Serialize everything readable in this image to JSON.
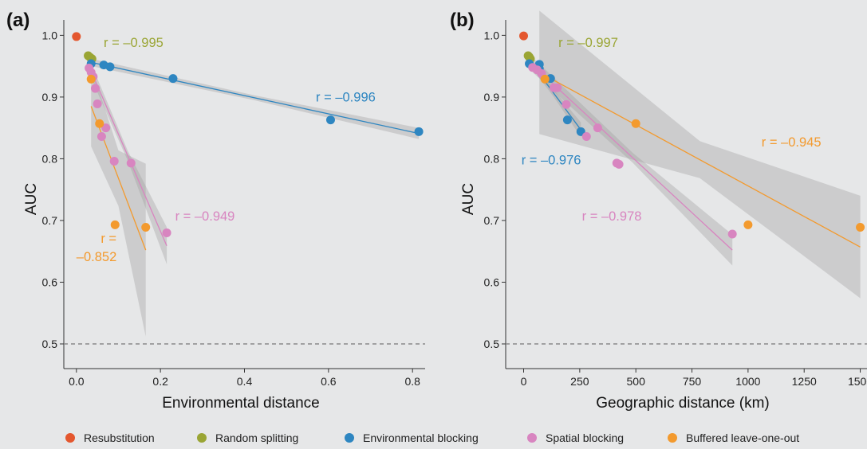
{
  "chart_data": [
    {
      "panel": "(a)",
      "type": "scatter",
      "xlabel": "Environmental distance",
      "ylabel": "AUC",
      "xlim": [
        -0.03,
        0.83
      ],
      "ylim": [
        0.46,
        1.025
      ],
      "xticks": [
        0.0,
        0.2,
        0.4,
        0.6,
        0.8
      ],
      "xtick_labels": [
        "0.0",
        "0.2",
        "0.4",
        "0.6",
        "0.8"
      ],
      "yticks": [
        0.5,
        0.6,
        0.7,
        0.8,
        0.9,
        1.0
      ],
      "ytick_labels": [
        "0.5",
        "0.6",
        "0.7",
        "0.8",
        "0.9",
        "1.0"
      ],
      "reference_line": 0.5,
      "grid": false,
      "series": [
        {
          "name": "Resubstitution",
          "color": "#e4572e",
          "points": [
            [
              0.0,
              0.998
            ]
          ]
        },
        {
          "name": "Random splitting",
          "color": "#9aa534",
          "points": [
            [
              0.028,
              0.967
            ],
            [
              0.033,
              0.964
            ],
            [
              0.037,
              0.962
            ]
          ]
        },
        {
          "name": "Environmental blocking",
          "color": "#2e86c1",
          "points": [
            [
              0.035,
              0.954
            ],
            [
              0.065,
              0.952
            ],
            [
              0.08,
              0.949
            ],
            [
              0.23,
              0.93
            ],
            [
              0.605,
              0.863
            ],
            [
              0.815,
              0.844
            ]
          ],
          "fit": {
            "x0": 0.03,
            "y0": 0.957,
            "x1": 0.815,
            "y1": 0.841,
            "band": [
              0.006,
              0.004,
              0.009
            ]
          }
        },
        {
          "name": "Spatial blocking",
          "color": "#d885c0",
          "points": [
            [
              0.03,
              0.947
            ],
            [
              0.035,
              0.94
            ],
            [
              0.04,
              0.933
            ],
            [
              0.045,
              0.914
            ],
            [
              0.05,
              0.889
            ],
            [
              0.06,
              0.836
            ],
            [
              0.07,
              0.85
            ],
            [
              0.09,
              0.796
            ],
            [
              0.13,
              0.793
            ],
            [
              0.215,
              0.68
            ]
          ],
          "fit": {
            "x0": 0.03,
            "y0": 0.95,
            "x1": 0.215,
            "y1": 0.659,
            "band": [
              0.012,
              0.008,
              0.03
            ]
          }
        },
        {
          "name": "Buffered leave-one-out",
          "color": "#f39a2e",
          "points": [
            [
              0.035,
              0.929
            ],
            [
              0.055,
              0.857
            ],
            [
              0.092,
              0.693
            ],
            [
              0.165,
              0.689
            ]
          ],
          "fit": {
            "x0": 0.035,
            "y0": 0.885,
            "x1": 0.165,
            "y1": 0.652,
            "band": [
              0.065,
              0.045,
              0.14
            ]
          }
        }
      ],
      "annotations": [
        {
          "text": "r = –0.995",
          "series": "Random splitting",
          "x": 0.065,
          "y": 0.981
        },
        {
          "text": "r = –0.996",
          "series": "Environmental blocking",
          "x": 0.57,
          "y": 0.893
        },
        {
          "text": "r = –0.949",
          "series": "Spatial blocking",
          "x": 0.235,
          "y": 0.7
        },
        {
          "text": "r =",
          "series": "Buffered leave-one-out",
          "x": 0.058,
          "y": 0.664
        },
        {
          "text": "–0.852",
          "series": "Buffered leave-one-out",
          "x": 0.0,
          "y": 0.634
        }
      ]
    },
    {
      "panel": "(b)",
      "type": "scatter",
      "xlabel": "Geographic distance (km)",
      "ylabel": "AUC",
      "xlim": [
        -80,
        1530
      ],
      "ylim": [
        0.46,
        1.025
      ],
      "xticks": [
        0,
        250,
        500,
        750,
        1000,
        1250,
        1500
      ],
      "xtick_labels": [
        "0",
        "250",
        "500",
        "750",
        "1000",
        "1250",
        "1500"
      ],
      "yticks": [
        0.5,
        0.6,
        0.7,
        0.8,
        0.9,
        1.0
      ],
      "ytick_labels": [
        "0.5",
        "0.6",
        "0.7",
        "0.8",
        "0.9",
        "1.0"
      ],
      "reference_line": 0.5,
      "grid": false,
      "series": [
        {
          "name": "Resubstitution",
          "color": "#e4572e",
          "points": [
            [
              0,
              0.999
            ]
          ]
        },
        {
          "name": "Random splitting",
          "color": "#9aa534",
          "points": [
            [
              20,
              0.967
            ],
            [
              25,
              0.965
            ],
            [
              30,
              0.962
            ]
          ]
        },
        {
          "name": "Environmental blocking",
          "color": "#2e86c1",
          "points": [
            [
              25,
              0.954
            ],
            [
              70,
              0.953
            ],
            [
              65,
              0.949
            ],
            [
              70,
              0.946
            ],
            [
              120,
              0.93
            ],
            [
              195,
              0.863
            ],
            [
              255,
              0.844
            ]
          ],
          "fit": {
            "x0": 20,
            "y0": 0.962,
            "x1": 255,
            "y1": 0.847,
            "band": [
              0.007,
              0.006,
              0.012
            ]
          }
        },
        {
          "name": "Spatial blocking",
          "color": "#d885c0",
          "points": [
            [
              40,
              0.948
            ],
            [
              60,
              0.944
            ],
            [
              80,
              0.938
            ],
            [
              135,
              0.915
            ],
            [
              150,
              0.915
            ],
            [
              190,
              0.888
            ],
            [
              280,
              0.836
            ],
            [
              330,
              0.85
            ],
            [
              415,
              0.793
            ],
            [
              425,
              0.791
            ],
            [
              930,
              0.678
            ]
          ],
          "fit": {
            "x0": 40,
            "y0": 0.952,
            "x1": 930,
            "y1": 0.652,
            "band": [
              0.012,
              0.008,
              0.025
            ]
          }
        },
        {
          "name": "Buffered leave-one-out",
          "color": "#f39a2e",
          "points": [
            [
              95,
              0.929
            ],
            [
              500,
              0.857
            ],
            [
              1000,
              0.693
            ],
            [
              1500,
              0.689
            ]
          ],
          "fit": {
            "x0": 70,
            "y0": 0.94,
            "x1": 1500,
            "y1": 0.657,
            "band": [
              0.1,
              0.03,
              0.083
            ]
          }
        }
      ],
      "annotations": [
        {
          "text": "r = –0.997",
          "series": "Random splitting",
          "x": 155,
          "y": 0.981
        },
        {
          "text": "r = –0.976",
          "series": "Environmental blocking",
          "x": -10,
          "y": 0.791
        },
        {
          "text": "r = –0.978",
          "series": "Spatial blocking",
          "x": 260,
          "y": 0.7
        },
        {
          "text": "r = –0.945",
          "series": "Buffered leave-one-out",
          "x": 1060,
          "y": 0.82
        }
      ]
    }
  ],
  "legend": [
    {
      "label": "Resubstitution",
      "color": "#e4572e"
    },
    {
      "label": "Random splitting",
      "color": "#9aa534"
    },
    {
      "label": "Environmental blocking",
      "color": "#2e86c1"
    },
    {
      "label": "Spatial blocking",
      "color": "#d885c0"
    },
    {
      "label": "Buffered leave-one-out",
      "color": "#f39a2e"
    }
  ]
}
